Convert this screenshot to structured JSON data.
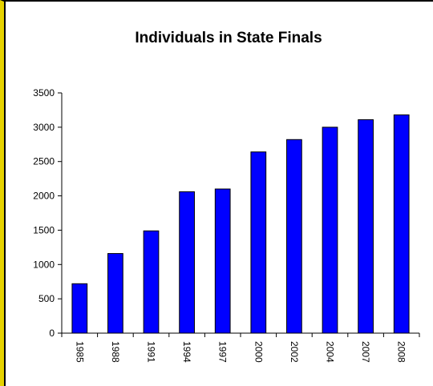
{
  "chart_data": {
    "type": "bar",
    "title": "Individuals in State Finals",
    "xlabel": "",
    "ylabel": "",
    "categories": [
      "1985",
      "1988",
      "1991",
      "1994",
      "1997",
      "2000",
      "2002",
      "2004",
      "2007",
      "2008"
    ],
    "values": [
      720,
      1160,
      1490,
      2060,
      2100,
      2640,
      2820,
      3000,
      3110,
      3180
    ],
    "ylim": [
      0,
      3500
    ],
    "yticks": [
      "0",
      "500",
      "1000",
      "1500",
      "2000",
      "2500",
      "3000",
      "3500"
    ],
    "grid": false,
    "legend": "none",
    "bar_color": "#0000ff",
    "bar_outline": "#000000",
    "frame_accent": "#e6d200"
  }
}
